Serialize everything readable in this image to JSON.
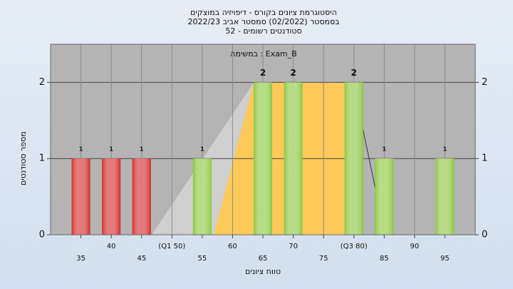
{
  "chart_data": {
    "type": "bar",
    "title": [
      "היסטוגרמת ציונים בקורס - דיפויזיה במוצקים",
      "בסמסטר  (02/2022)  סמסטר אביב 2022/23",
      "סטודנטים רשומים - 52"
    ],
    "annotation": "במשימה : Exam_B",
    "x_label": "טווח ציונים",
    "y_label": "מספר סטודנטים",
    "x": [
      35,
      40,
      45,
      55,
      65,
      70,
      80,
      85,
      95
    ],
    "values": [
      1,
      1,
      1,
      1,
      2,
      2,
      2,
      1,
      1
    ],
    "colors": [
      "#d42a2a",
      "#d42a2a",
      "#d42a2a",
      "#8cc63f",
      "#8cc63f",
      "#8cc63f",
      "#8cc63f",
      "#8cc63f",
      "#8cc63f"
    ],
    "xlim": [
      30,
      100
    ],
    "xticks": [
      35,
      40,
      45,
      {
        "value": 50,
        "label": "(Q1 50)"
      },
      55,
      60,
      65,
      70,
      75,
      {
        "value": 80,
        "label": "(Q3 80)"
      },
      85,
      90,
      95
    ],
    "ylim": [
      0,
      2.5
    ],
    "yticks": [
      0,
      1,
      2
    ],
    "grid": true
  }
}
